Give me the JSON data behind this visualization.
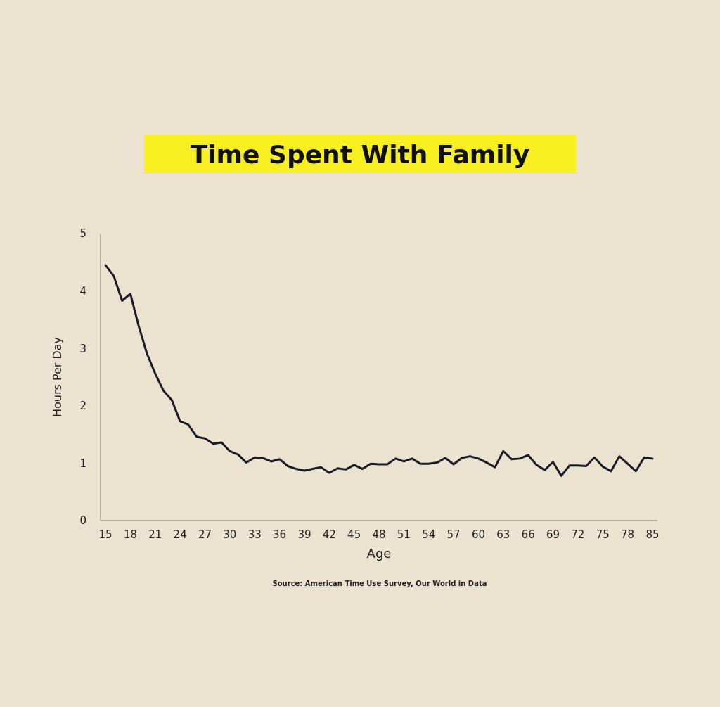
{
  "chart_data": {
    "type": "line",
    "title": "Time Spent With Family",
    "xlabel": "Age",
    "ylabel": "Hours Per Day",
    "annotations": [
      "Source: American Time Use Survey, Our World in Data"
    ],
    "categories": [
      "15",
      null,
      null,
      "18",
      null,
      null,
      "21",
      null,
      null,
      "24",
      null,
      null,
      "27",
      null,
      null,
      "30",
      null,
      null,
      "33",
      null,
      null,
      "36",
      null,
      null,
      "39",
      null,
      null,
      "42",
      null,
      null,
      "45",
      null,
      null,
      "48",
      null,
      null,
      "51",
      null,
      null,
      "54",
      null,
      null,
      "57",
      null,
      null,
      "60",
      null,
      null,
      "63",
      null,
      null,
      "66",
      null,
      null,
      "69",
      null,
      null,
      "72",
      null,
      null,
      "75",
      null,
      null,
      "78",
      null,
      null,
      "85"
    ],
    "series": [
      {
        "color": "#1a1c2a",
        "values": [
          4.45,
          4.26,
          3.83,
          3.95,
          3.39,
          2.91,
          2.56,
          2.26,
          2.1,
          1.73,
          1.67,
          1.46,
          1.43,
          1.34,
          1.36,
          1.21,
          1.15,
          1.01,
          1.1,
          1.09,
          1.03,
          1.07,
          0.95,
          0.9,
          0.87,
          0.9,
          0.93,
          0.83,
          0.91,
          0.89,
          0.97,
          0.9,
          0.99,
          0.98,
          0.98,
          1.08,
          1.03,
          1.08,
          0.99,
          0.99,
          1.01,
          1.09,
          0.98,
          1.09,
          1.12,
          1.08,
          1.01,
          0.93,
          1.21,
          1.07,
          1.08,
          1.14,
          0.97,
          0.88,
          1.02,
          0.78,
          0.96,
          0.96,
          0.95,
          1.1,
          0.94,
          0.86,
          1.12,
          0.99,
          0.86,
          1.1,
          1.08
        ]
      }
    ],
    "ylim": [
      0,
      5
    ],
    "yticks": [
      0,
      1,
      2,
      3,
      4,
      5
    ],
    "grid": false,
    "legend": false,
    "marker": "none",
    "line_style": "solid"
  }
}
